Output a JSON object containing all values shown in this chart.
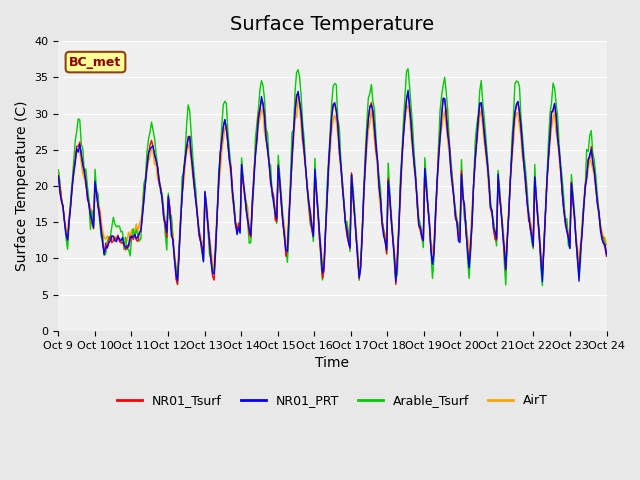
{
  "title": "Surface Temperature",
  "ylabel": "Surface Temperature (C)",
  "xlabel": "Time",
  "annotation": "BC_met",
  "ylim": [
    0,
    40
  ],
  "yticks": [
    0,
    5,
    10,
    15,
    20,
    25,
    30,
    35,
    40
  ],
  "series_colors": {
    "NR01_Tsurf": "#FF0000",
    "NR01_PRT": "#0000FF",
    "Arable_Tsurf": "#00CC00",
    "AirT": "#FFA500"
  },
  "series_names": [
    "NR01_Tsurf",
    "NR01_PRT",
    "Arable_Tsurf",
    "AirT"
  ],
  "background_color": "#E8E8E8",
  "plot_bg_color": "#F0F0F0",
  "x_tick_labels": [
    "Oct 9",
    "Oct 10",
    "Oct 11",
    "Oct 12",
    "Oct 13",
    "Oct 14",
    "Oct 15",
    "Oct 16",
    "Oct 17",
    "Oct 18",
    "Oct 19",
    "Oct 20",
    "Oct 21",
    "Oct 22",
    "Oct 23",
    "Oct 24"
  ],
  "day_peaks": [
    26,
    13,
    26,
    27,
    29.5,
    32,
    33,
    32,
    32,
    33,
    32,
    31.5,
    32,
    31.5,
    25
  ],
  "day_mins": [
    12,
    11,
    13,
    6,
    6,
    12,
    9,
    6,
    6,
    6,
    8,
    8,
    8,
    7,
    7.5
  ],
  "n_days": 15,
  "title_fontsize": 14,
  "axis_fontsize": 10,
  "tick_fontsize": 8,
  "legend_fontsize": 9
}
